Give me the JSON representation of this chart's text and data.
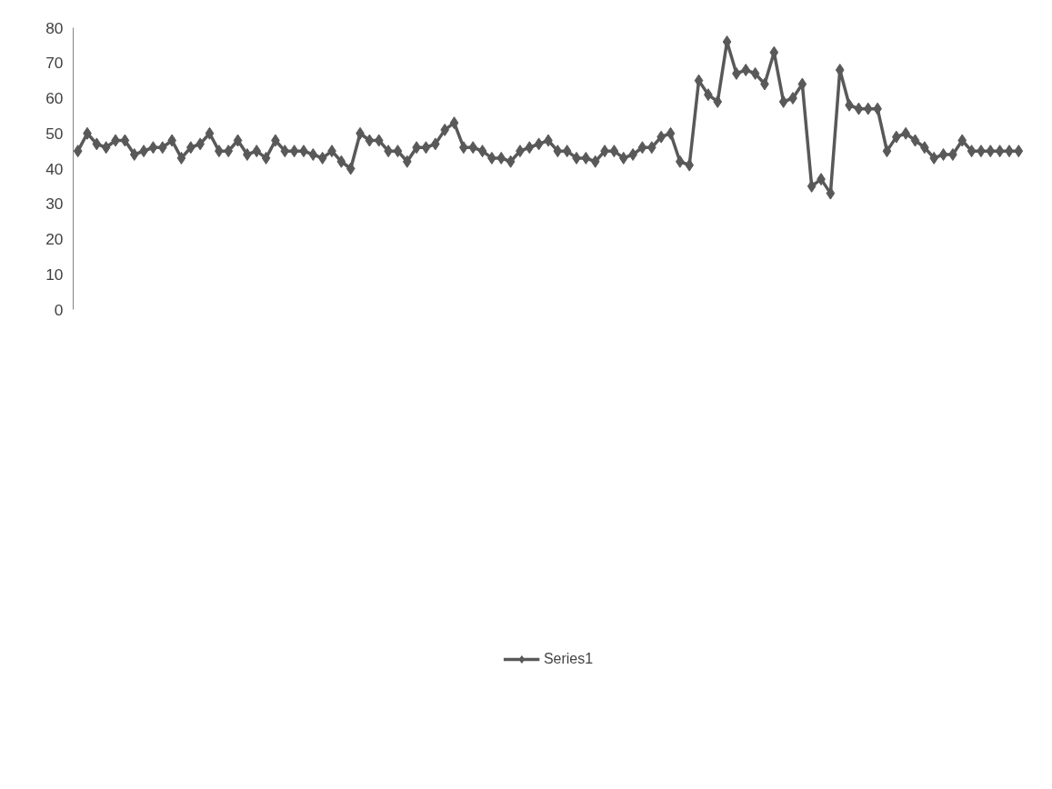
{
  "chart_data": {
    "type": "line",
    "categories": [
      null,
      null,
      null,
      null,
      null,
      null,
      null,
      null,
      null,
      null,
      null,
      null,
      null,
      null,
      null,
      null,
      null,
      null,
      null,
      null,
      null,
      null,
      null,
      null,
      null,
      null,
      null,
      null,
      null,
      null,
      null,
      null,
      null,
      null,
      null,
      null,
      null,
      null,
      null,
      null,
      null,
      null,
      null,
      null,
      null,
      null,
      null,
      null,
      null,
      null,
      null,
      null,
      null,
      null,
      null,
      null,
      null,
      null,
      null,
      null,
      null,
      null,
      null,
      null,
      null,
      null,
      null,
      null,
      null,
      null,
      null,
      null,
      null,
      null,
      null,
      null,
      null,
      null,
      null,
      null,
      null,
      null,
      null,
      null,
      null,
      null,
      null,
      null,
      null,
      null,
      null,
      null,
      null,
      null,
      null,
      null,
      null,
      null,
      null,
      null,
      null
    ],
    "series": [
      {
        "name": "Series1",
        "color": "#595959",
        "values": [
          45,
          50,
          47,
          46,
          48,
          48,
          44,
          45,
          46,
          46,
          48,
          43,
          46,
          47,
          50,
          45,
          45,
          48,
          44,
          45,
          43,
          48,
          45,
          45,
          45,
          44,
          43,
          45,
          42,
          40,
          50,
          48,
          48,
          45,
          45,
          42,
          46,
          46,
          47,
          51,
          53,
          46,
          46,
          45,
          43,
          43,
          42,
          45,
          46,
          47,
          48,
          45,
          45,
          43,
          43,
          42,
          45,
          45,
          43,
          44,
          46,
          46,
          49,
          50,
          42,
          41,
          65,
          61,
          59,
          76,
          67,
          68,
          67,
          64,
          73,
          59,
          60,
          64,
          35,
          37,
          33,
          68,
          58,
          57,
          57,
          57,
          45,
          49,
          50,
          48,
          46,
          43,
          44,
          44,
          48,
          45,
          45,
          45,
          45,
          45,
          45
        ]
      }
    ],
    "ylim": [
      0,
      80
    ],
    "yticks": [
      0,
      10,
      20,
      30,
      40,
      50,
      60,
      70,
      80
    ],
    "grid": false,
    "legend": "bottom",
    "marker": "diamond",
    "line_style": "solid"
  }
}
